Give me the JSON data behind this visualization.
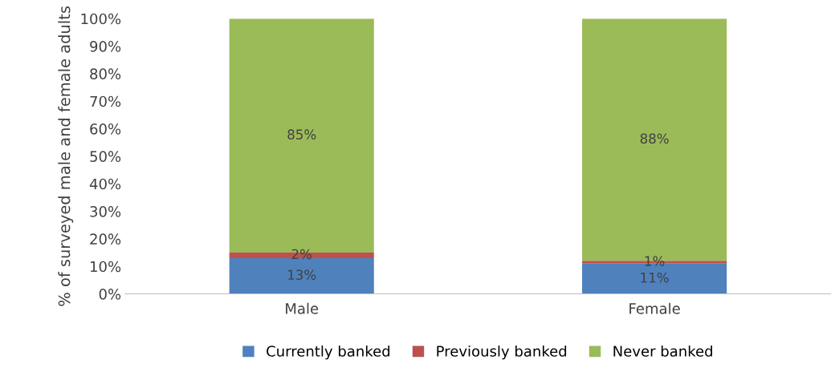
{
  "chart_data": {
    "type": "bar",
    "stacked": true,
    "categories": [
      "Male",
      "Female"
    ],
    "series": [
      {
        "name": "Currently banked",
        "color": "#4f81bd",
        "values": [
          13,
          11
        ],
        "value_labels": [
          "13%",
          "11%"
        ]
      },
      {
        "name": "Previously banked",
        "color": "#c0504d",
        "values": [
          2,
          1
        ],
        "value_labels": [
          "2%",
          "1%"
        ]
      },
      {
        "name": "Never banked",
        "color": "#9bbb59",
        "values": [
          85,
          88
        ],
        "value_labels": [
          "85%",
          "88%"
        ]
      }
    ],
    "ylabel": "% of surveyed male and female adults",
    "ylim": [
      0,
      100
    ],
    "yticks": [
      {
        "value": 0,
        "label": "0%"
      },
      {
        "value": 10,
        "label": "10%"
      },
      {
        "value": 20,
        "label": "20%"
      },
      {
        "value": 30,
        "label": "30%"
      },
      {
        "value": 40,
        "label": "40%"
      },
      {
        "value": 50,
        "label": "50%"
      },
      {
        "value": 60,
        "label": "60%"
      },
      {
        "value": 70,
        "label": "70%"
      },
      {
        "value": 80,
        "label": "80%"
      },
      {
        "value": 90,
        "label": "90%"
      },
      {
        "value": 100,
        "label": "100%"
      }
    ],
    "legend": "bottom",
    "grid": false
  }
}
